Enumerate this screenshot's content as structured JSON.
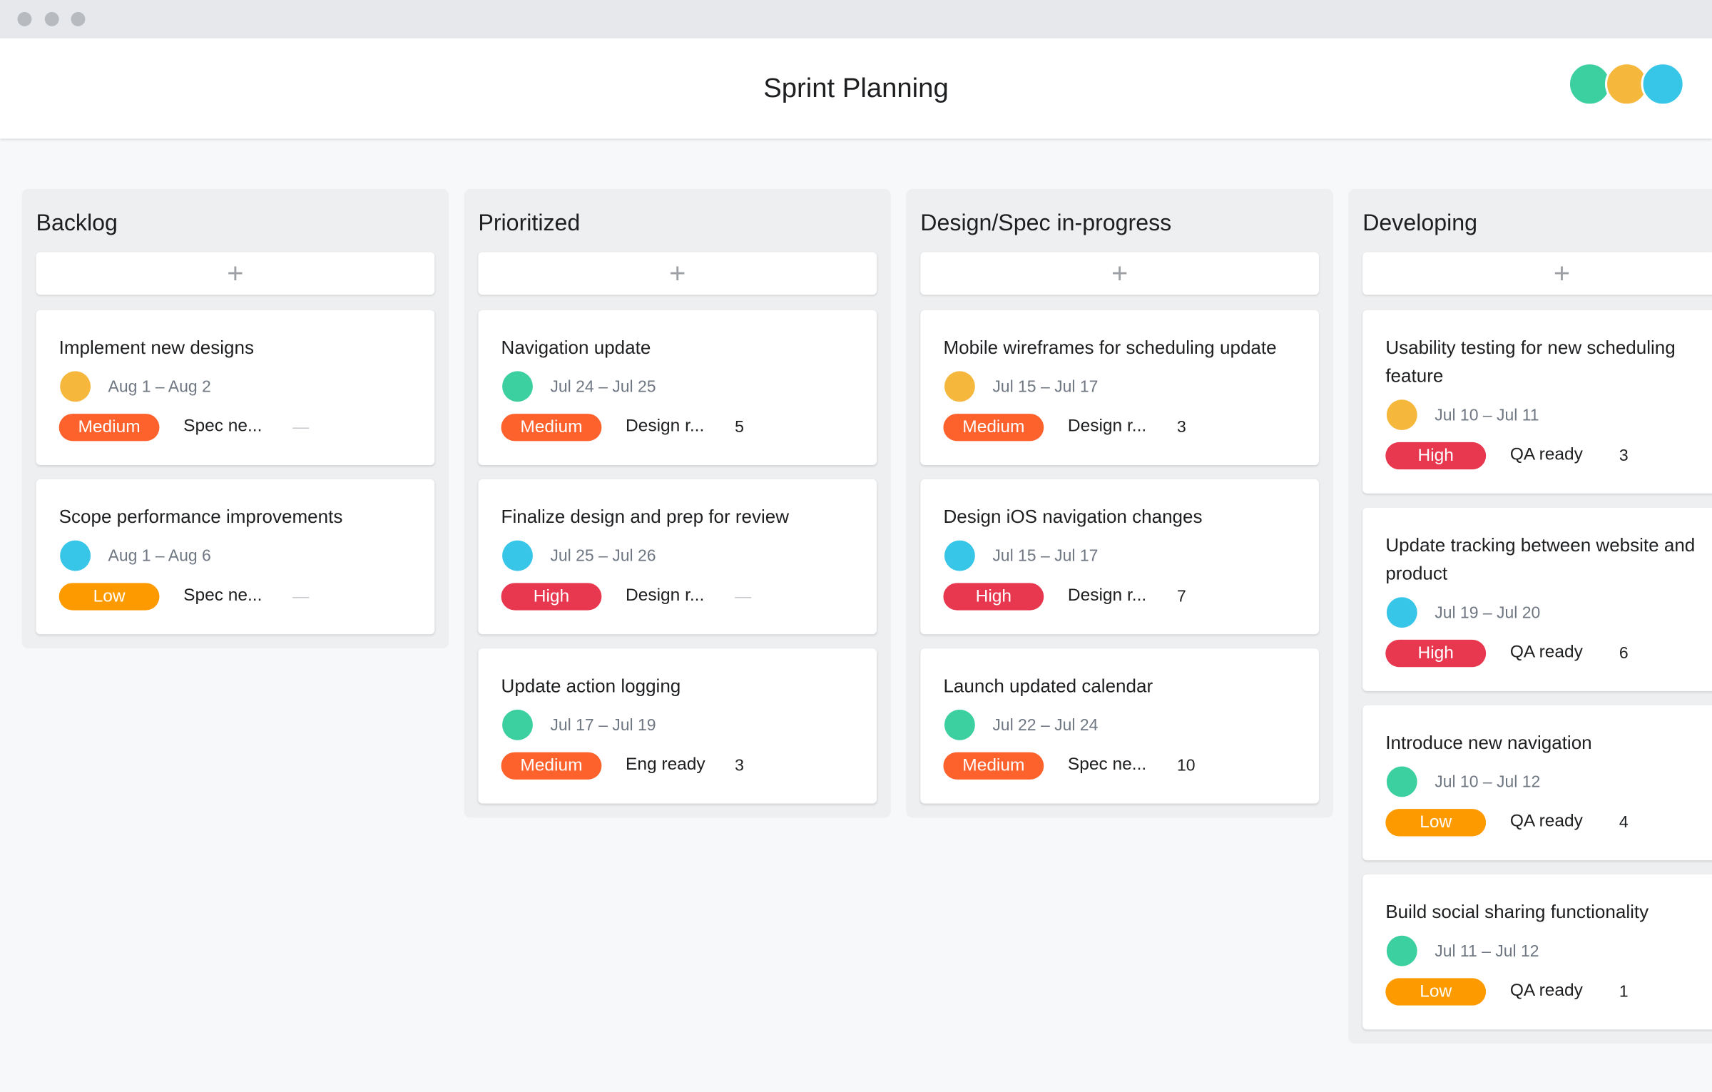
{
  "header": {
    "title": "Sprint Planning"
  },
  "priority_colors": {
    "Medium": "#fd612c",
    "High": "#e8384f",
    "Low": "#fd9a00"
  },
  "columns": [
    {
      "name": "Backlog",
      "add": "+",
      "cards": [
        {
          "title": "Implement new designs",
          "avatar": "#f5b83d",
          "dates": "Aug 1 – Aug 2",
          "priority": "Medium",
          "status": "Spec ne...",
          "count": "—"
        },
        {
          "title": "Scope performance improvements",
          "avatar": "#37c5e8",
          "dates": "Aug 1 – Aug 6",
          "priority": "Low",
          "status": "Spec ne...",
          "count": "—"
        }
      ]
    },
    {
      "name": "Prioritized",
      "add": "+",
      "cards": [
        {
          "title": "Navigation update",
          "avatar": "#3ccfa0",
          "dates": "Jul 24 – Jul 25",
          "priority": "Medium",
          "status": "Design r...",
          "count": "5"
        },
        {
          "title": "Finalize design and prep for review",
          "avatar": "#37c5e8",
          "dates": "Jul 25 – Jul 26",
          "priority": "High",
          "status": "Design r...",
          "count": "—"
        },
        {
          "title": "Update action logging",
          "avatar": "#3ccfa0",
          "dates": "Jul 17 – Jul 19",
          "priority": "Medium",
          "status": "Eng ready",
          "count": "3"
        }
      ]
    },
    {
      "name": "Design/Spec in-progress",
      "add": "+",
      "cards": [
        {
          "title": "Mobile wireframes for scheduling update",
          "avatar": "#f5b83d",
          "dates": "Jul 15 – Jul 17",
          "priority": "Medium",
          "status": "Design r...",
          "count": "3"
        },
        {
          "title": "Design iOS navigation changes",
          "avatar": "#37c5e8",
          "dates": "Jul 15 – Jul 17",
          "priority": "High",
          "status": "Design r...",
          "count": "7"
        },
        {
          "title": "Launch updated calendar",
          "avatar": "#3ccfa0",
          "dates": "Jul 22 – Jul 24",
          "priority": "Medium",
          "status": "Spec ne...",
          "count": "10"
        }
      ]
    },
    {
      "name": "Developing",
      "add": "+",
      "cards": [
        {
          "title": "Usability testing for new scheduling feature",
          "avatar": "#f5b83d",
          "dates": "Jul 10 – Jul 11",
          "priority": "High",
          "status": "QA ready",
          "count": "3"
        },
        {
          "title": "Update tracking between website and product",
          "avatar": "#37c5e8",
          "dates": "Jul 19 – Jul 20",
          "priority": "High",
          "status": "QA ready",
          "count": "6"
        },
        {
          "title": "Introduce new navigation",
          "avatar": "#3ccfa0",
          "dates": "Jul 10 – Jul 12",
          "priority": "Low",
          "status": "QA ready",
          "count": "4"
        },
        {
          "title": "Build social sharing functionality",
          "avatar": "#3ccfa0",
          "dates": "Jul 11 – Jul 12",
          "priority": "Low",
          "status": "QA ready",
          "count": "1"
        }
      ]
    }
  ]
}
